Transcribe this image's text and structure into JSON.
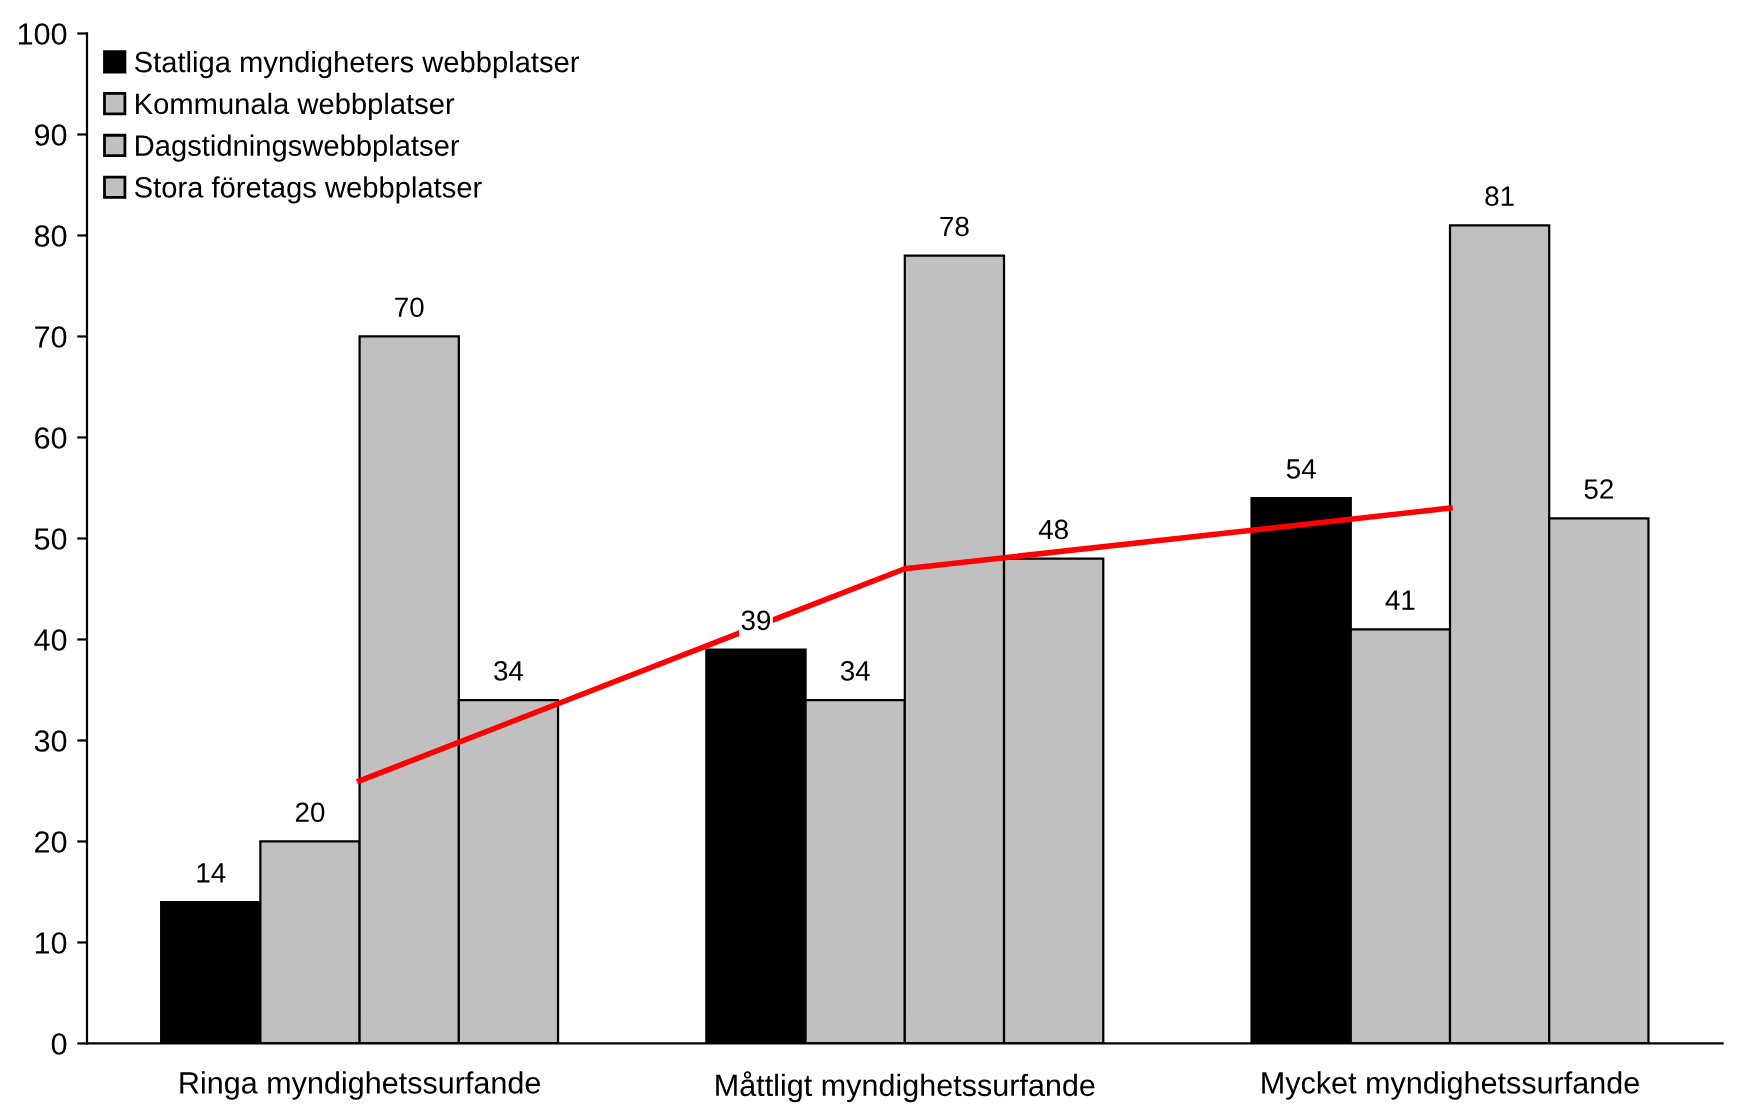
{
  "chart_data": {
    "type": "bar",
    "categories": [
      "Ringa myndighetssurfande",
      "Måttligt myndighetssurfande",
      "Mycket myndighetssurfande"
    ],
    "series": [
      {
        "name": "Statliga myndigheters webbplatser",
        "color": "#000000",
        "values": [
          14,
          39,
          54
        ]
      },
      {
        "name": "Kommunala webbplatser",
        "color": "#c0c0c0",
        "values": [
          20,
          34,
          41
        ]
      },
      {
        "name": "Dagstidningswebbplatser",
        "color": "#c0c0c0",
        "values": [
          70,
          78,
          81
        ]
      },
      {
        "name": "Stora företags webbplatser",
        "color": "#c0c0c0",
        "values": [
          34,
          48,
          52
        ]
      },
      {
        "type": "line",
        "color": "#ff0000",
        "values": [
          26,
          47,
          53
        ],
        "value_labels": [
          null,
          null,
          null
        ]
      }
    ],
    "ylim": [
      0,
      100
    ],
    "yticks": [
      0,
      10,
      20,
      30,
      40,
      50,
      60,
      70,
      80,
      90,
      100
    ],
    "data_labels": true,
    "grid": false,
    "legend": "top left"
  }
}
